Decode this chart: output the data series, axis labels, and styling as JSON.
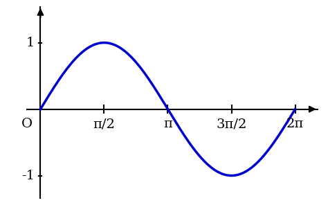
{
  "line_color": "#0000cc",
  "line_width": 2.5,
  "background_color": "#ffffff",
  "axis_color": "#000000",
  "x_tick_positions": [
    1.5707963267948966,
    3.141592653589793,
    4.71238898038469,
    6.283185307179586
  ],
  "x_tick_labels": [
    "π/2",
    "π",
    "3π/2",
    "2π"
  ],
  "y_tick_positions": [
    -1,
    1
  ],
  "y_tick_labels": [
    "-1",
    "1"
  ],
  "origin_label": "O",
  "xlim": [
    -0.35,
    6.85
  ],
  "ylim": [
    -1.35,
    1.55
  ],
  "figsize": [
    4.74,
    2.96
  ],
  "dpi": 100,
  "tick_fontsize": 14
}
